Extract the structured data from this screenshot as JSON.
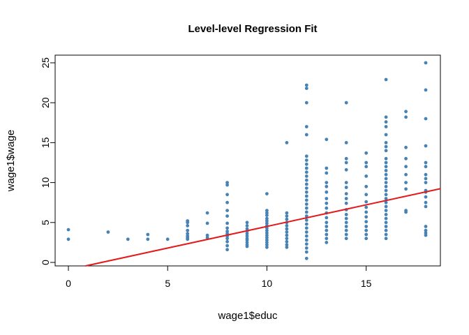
{
  "chart_data": {
    "type": "scatter",
    "title": "Level-level Regression Fit",
    "xlabel": "wage1$educ",
    "ylabel": "wage1$wage",
    "xlim": [
      0,
      18
    ],
    "ylim": [
      0,
      25
    ],
    "xticks": [
      "0",
      "5",
      "10",
      "15"
    ],
    "yticks": [
      "0",
      "5",
      "10",
      "15",
      "20",
      "25"
    ],
    "grid": false,
    "legend": "none",
    "point_color": "#4682b4",
    "line_color": "#e31a1c",
    "fit_line": {
      "intercept": -0.905,
      "slope": 0.541
    },
    "points": [
      {
        "x": 0,
        "y": 4.1
      },
      {
        "x": 0,
        "y": 2.9
      },
      {
        "x": 2,
        "y": 3.8
      },
      {
        "x": 3,
        "y": 2.9
      },
      {
        "x": 4,
        "y": 3.5
      },
      {
        "x": 4,
        "y": 2.9
      },
      {
        "x": 5,
        "y": 2.9
      },
      {
        "x": 6,
        "y": 5.2
      },
      {
        "x": 6,
        "y": 5.0
      },
      {
        "x": 6,
        "y": 4.6
      },
      {
        "x": 6,
        "y": 4.0
      },
      {
        "x": 6,
        "y": 3.6
      },
      {
        "x": 6,
        "y": 3.3
      },
      {
        "x": 6,
        "y": 3.1
      },
      {
        "x": 6,
        "y": 2.9
      },
      {
        "x": 7,
        "y": 6.2
      },
      {
        "x": 7,
        "y": 4.9
      },
      {
        "x": 7,
        "y": 3.4
      },
      {
        "x": 7,
        "y": 3.1
      },
      {
        "x": 8,
        "y": 10.0
      },
      {
        "x": 8,
        "y": 9.7
      },
      {
        "x": 8,
        "y": 8.5
      },
      {
        "x": 8,
        "y": 7.5
      },
      {
        "x": 8,
        "y": 6.5
      },
      {
        "x": 8,
        "y": 5.8
      },
      {
        "x": 8,
        "y": 4.9
      },
      {
        "x": 8,
        "y": 4.3
      },
      {
        "x": 8,
        "y": 3.9
      },
      {
        "x": 8,
        "y": 3.6
      },
      {
        "x": 8,
        "y": 3.3
      },
      {
        "x": 8,
        "y": 3.0
      },
      {
        "x": 8,
        "y": 2.6
      },
      {
        "x": 8,
        "y": 2.1
      },
      {
        "x": 8,
        "y": 1.6
      },
      {
        "x": 9,
        "y": 5.0
      },
      {
        "x": 9,
        "y": 4.6
      },
      {
        "x": 9,
        "y": 4.2
      },
      {
        "x": 9,
        "y": 3.9
      },
      {
        "x": 9,
        "y": 3.6
      },
      {
        "x": 9,
        "y": 3.3
      },
      {
        "x": 9,
        "y": 3.0
      },
      {
        "x": 9,
        "y": 2.8
      },
      {
        "x": 9,
        "y": 2.5
      },
      {
        "x": 9,
        "y": 2.2
      },
      {
        "x": 9,
        "y": 2.0
      },
      {
        "x": 10,
        "y": 8.6
      },
      {
        "x": 10,
        "y": 6.5
      },
      {
        "x": 10,
        "y": 6.2
      },
      {
        "x": 10,
        "y": 5.9
      },
      {
        "x": 10,
        "y": 5.5
      },
      {
        "x": 10,
        "y": 5.2
      },
      {
        "x": 10,
        "y": 4.9
      },
      {
        "x": 10,
        "y": 4.6
      },
      {
        "x": 10,
        "y": 4.3
      },
      {
        "x": 10,
        "y": 4.0
      },
      {
        "x": 10,
        "y": 3.7
      },
      {
        "x": 10,
        "y": 3.4
      },
      {
        "x": 10,
        "y": 3.1
      },
      {
        "x": 10,
        "y": 2.8
      },
      {
        "x": 10,
        "y": 2.5
      },
      {
        "x": 10,
        "y": 2.2
      },
      {
        "x": 10,
        "y": 1.9
      },
      {
        "x": 11,
        "y": 15.0
      },
      {
        "x": 11,
        "y": 6.2
      },
      {
        "x": 11,
        "y": 5.8
      },
      {
        "x": 11,
        "y": 5.4
      },
      {
        "x": 11,
        "y": 5.0
      },
      {
        "x": 11,
        "y": 4.6
      },
      {
        "x": 11,
        "y": 4.2
      },
      {
        "x": 11,
        "y": 3.8
      },
      {
        "x": 11,
        "y": 3.4
      },
      {
        "x": 11,
        "y": 3.0
      },
      {
        "x": 11,
        "y": 2.6
      },
      {
        "x": 11,
        "y": 2.2
      },
      {
        "x": 11,
        "y": 1.9
      },
      {
        "x": 12,
        "y": 22.2
      },
      {
        "x": 12,
        "y": 21.8
      },
      {
        "x": 12,
        "y": 20.0
      },
      {
        "x": 12,
        "y": 17.0
      },
      {
        "x": 12,
        "y": 16.0
      },
      {
        "x": 12,
        "y": 13.3
      },
      {
        "x": 12,
        "y": 12.8
      },
      {
        "x": 12,
        "y": 12.3
      },
      {
        "x": 12,
        "y": 11.8
      },
      {
        "x": 12,
        "y": 11.3
      },
      {
        "x": 12,
        "y": 10.8
      },
      {
        "x": 12,
        "y": 10.3
      },
      {
        "x": 12,
        "y": 9.8
      },
      {
        "x": 12,
        "y": 9.3
      },
      {
        "x": 12,
        "y": 8.8
      },
      {
        "x": 12,
        "y": 8.3
      },
      {
        "x": 12,
        "y": 7.8
      },
      {
        "x": 12,
        "y": 7.3
      },
      {
        "x": 12,
        "y": 6.8
      },
      {
        "x": 12,
        "y": 6.3
      },
      {
        "x": 12,
        "y": 5.8
      },
      {
        "x": 12,
        "y": 5.3
      },
      {
        "x": 12,
        "y": 4.8
      },
      {
        "x": 12,
        "y": 4.3
      },
      {
        "x": 12,
        "y": 3.8
      },
      {
        "x": 12,
        "y": 3.3
      },
      {
        "x": 12,
        "y": 2.8
      },
      {
        "x": 12,
        "y": 2.3
      },
      {
        "x": 12,
        "y": 1.8
      },
      {
        "x": 12,
        "y": 1.3
      },
      {
        "x": 12,
        "y": 0.5
      },
      {
        "x": 13,
        "y": 15.4
      },
      {
        "x": 13,
        "y": 11.8
      },
      {
        "x": 13,
        "y": 11.2
      },
      {
        "x": 13,
        "y": 10.0
      },
      {
        "x": 13,
        "y": 9.5
      },
      {
        "x": 13,
        "y": 8.8
      },
      {
        "x": 13,
        "y": 8.0
      },
      {
        "x": 13,
        "y": 7.4
      },
      {
        "x": 13,
        "y": 6.8
      },
      {
        "x": 13,
        "y": 6.2
      },
      {
        "x": 13,
        "y": 5.6
      },
      {
        "x": 13,
        "y": 5.0
      },
      {
        "x": 13,
        "y": 4.5
      },
      {
        "x": 13,
        "y": 4.0
      },
      {
        "x": 13,
        "y": 3.5
      },
      {
        "x": 13,
        "y": 3.0
      },
      {
        "x": 13,
        "y": 2.5
      },
      {
        "x": 14,
        "y": 20.0
      },
      {
        "x": 14,
        "y": 15.0
      },
      {
        "x": 14,
        "y": 13.0
      },
      {
        "x": 14,
        "y": 12.5
      },
      {
        "x": 14,
        "y": 11.6
      },
      {
        "x": 14,
        "y": 10.0
      },
      {
        "x": 14,
        "y": 9.4
      },
      {
        "x": 14,
        "y": 8.6
      },
      {
        "x": 14,
        "y": 8.0
      },
      {
        "x": 14,
        "y": 7.4
      },
      {
        "x": 14,
        "y": 6.6
      },
      {
        "x": 14,
        "y": 6.0
      },
      {
        "x": 14,
        "y": 5.5
      },
      {
        "x": 14,
        "y": 5.0
      },
      {
        "x": 14,
        "y": 4.5
      },
      {
        "x": 14,
        "y": 4.0
      },
      {
        "x": 14,
        "y": 3.5
      },
      {
        "x": 14,
        "y": 3.0
      },
      {
        "x": 15,
        "y": 13.7
      },
      {
        "x": 15,
        "y": 12.5
      },
      {
        "x": 15,
        "y": 12.0
      },
      {
        "x": 15,
        "y": 10.8
      },
      {
        "x": 15,
        "y": 9.5
      },
      {
        "x": 15,
        "y": 8.5
      },
      {
        "x": 15,
        "y": 7.6
      },
      {
        "x": 15,
        "y": 6.9
      },
      {
        "x": 15,
        "y": 6.3
      },
      {
        "x": 15,
        "y": 5.7
      },
      {
        "x": 15,
        "y": 5.1
      },
      {
        "x": 15,
        "y": 4.5
      },
      {
        "x": 15,
        "y": 4.0
      },
      {
        "x": 15,
        "y": 3.5
      },
      {
        "x": 15,
        "y": 3.0
      },
      {
        "x": 16,
        "y": 22.9
      },
      {
        "x": 16,
        "y": 18.2
      },
      {
        "x": 16,
        "y": 17.6
      },
      {
        "x": 16,
        "y": 17.0
      },
      {
        "x": 16,
        "y": 16.0
      },
      {
        "x": 16,
        "y": 15.0
      },
      {
        "x": 16,
        "y": 14.5
      },
      {
        "x": 16,
        "y": 14.0
      },
      {
        "x": 16,
        "y": 13.0
      },
      {
        "x": 16,
        "y": 12.5
      },
      {
        "x": 16,
        "y": 12.0
      },
      {
        "x": 16,
        "y": 11.5
      },
      {
        "x": 16,
        "y": 11.0
      },
      {
        "x": 16,
        "y": 10.5
      },
      {
        "x": 16,
        "y": 10.0
      },
      {
        "x": 16,
        "y": 9.5
      },
      {
        "x": 16,
        "y": 9.0
      },
      {
        "x": 16,
        "y": 8.5
      },
      {
        "x": 16,
        "y": 8.0
      },
      {
        "x": 16,
        "y": 7.5
      },
      {
        "x": 16,
        "y": 7.0
      },
      {
        "x": 16,
        "y": 6.5
      },
      {
        "x": 16,
        "y": 6.0
      },
      {
        "x": 16,
        "y": 5.5
      },
      {
        "x": 16,
        "y": 5.0
      },
      {
        "x": 16,
        "y": 4.5
      },
      {
        "x": 16,
        "y": 4.0
      },
      {
        "x": 16,
        "y": 3.5
      },
      {
        "x": 16,
        "y": 3.0
      },
      {
        "x": 17,
        "y": 18.9
      },
      {
        "x": 17,
        "y": 18.2
      },
      {
        "x": 17,
        "y": 14.4
      },
      {
        "x": 17,
        "y": 13.0
      },
      {
        "x": 17,
        "y": 12.0
      },
      {
        "x": 17,
        "y": 11.0
      },
      {
        "x": 17,
        "y": 10.0
      },
      {
        "x": 17,
        "y": 9.2
      },
      {
        "x": 17,
        "y": 6.5
      },
      {
        "x": 17,
        "y": 6.3
      },
      {
        "x": 18,
        "y": 25.0
      },
      {
        "x": 18,
        "y": 21.6
      },
      {
        "x": 18,
        "y": 18.0
      },
      {
        "x": 18,
        "y": 14.6
      },
      {
        "x": 18,
        "y": 12.5
      },
      {
        "x": 18,
        "y": 12.0
      },
      {
        "x": 18,
        "y": 11.0
      },
      {
        "x": 18,
        "y": 10.5
      },
      {
        "x": 18,
        "y": 10.0
      },
      {
        "x": 18,
        "y": 9.0
      },
      {
        "x": 18,
        "y": 8.8
      },
      {
        "x": 18,
        "y": 8.2
      },
      {
        "x": 18,
        "y": 7.5
      },
      {
        "x": 18,
        "y": 7.0
      },
      {
        "x": 18,
        "y": 4.5
      },
      {
        "x": 18,
        "y": 4.0
      },
      {
        "x": 18,
        "y": 3.7
      },
      {
        "x": 18,
        "y": 3.4
      }
    ]
  }
}
